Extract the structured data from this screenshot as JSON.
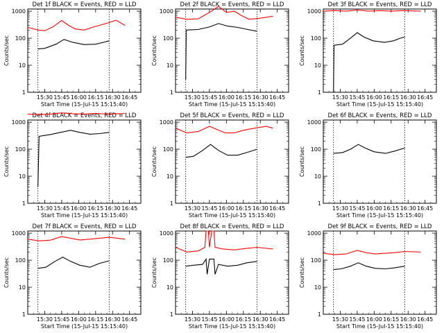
{
  "chart_data": [
    {
      "type": "line",
      "title": "Det 1f BLACK = Events, RED = LLD",
      "xlabel": "Start Time (15-Jul-15 15:15:40)",
      "ylabel": "Counts/sec",
      "x_tick_labels": [
        "15:30",
        "15:45",
        "16:00",
        "16:15",
        "16:30",
        "16:45"
      ],
      "y_tick_labels": [
        "1",
        "10",
        "100",
        "1000"
      ],
      "yscale": "log",
      "ylim": [
        1,
        1200
      ],
      "series": [
        {
          "color": "#000000",
          "points": [
            [
              9,
              40
            ],
            [
              15,
              42
            ],
            [
              25,
              60
            ],
            [
              32,
              90
            ],
            [
              40,
              70
            ],
            [
              50,
              58
            ],
            [
              60,
              60
            ],
            [
              68,
              72
            ],
            [
              72,
              80
            ]
          ]
        },
        {
          "color": "#ff0000",
          "points": [
            [
              0,
              250
            ],
            [
              9,
              200
            ],
            [
              15,
              190
            ],
            [
              22,
              260
            ],
            [
              30,
              450
            ],
            [
              36,
              300
            ],
            [
              42,
              220
            ],
            [
              50,
              200
            ],
            [
              58,
              260
            ],
            [
              66,
              320
            ],
            [
              72,
              380
            ],
            [
              78,
              460
            ],
            [
              86,
              300
            ]
          ]
        }
      ]
    },
    {
      "type": "line",
      "title": "Det 2f BLACK = Events, RED = LLD",
      "xlabel": "Start Time (15-Jul-15 15:15:40)",
      "ylabel": "Counts/sec",
      "x_tick_labels": [
        "15:30",
        "15:45",
        "16:00",
        "16:15",
        "16:30",
        "16:45"
      ],
      "y_tick_labels": [
        "1",
        "10",
        "100",
        "1000"
      ],
      "yscale": "log",
      "ylim": [
        1,
        1200
      ],
      "series": [
        {
          "color": "#000000",
          "points": [
            [
              9,
              3
            ],
            [
              9.5,
              200
            ],
            [
              20,
              210
            ],
            [
              30,
              260
            ],
            [
              38,
              350
            ],
            [
              46,
              280
            ],
            [
              55,
              250
            ],
            [
              64,
              210
            ],
            [
              72,
              180
            ]
          ]
        },
        {
          "color": "#ff0000",
          "points": [
            [
              0,
              600
            ],
            [
              10,
              500
            ],
            [
              20,
              520
            ],
            [
              30,
              900
            ],
            [
              38,
              1500
            ],
            [
              45,
              900
            ],
            [
              52,
              1000
            ],
            [
              58,
              700
            ],
            [
              65,
              500
            ],
            [
              75,
              550
            ],
            [
              86,
              650
            ]
          ]
        }
      ]
    },
    {
      "type": "line",
      "title": "Det 3f BLACK = Events, RED = LLD",
      "xlabel": "Start Time (15-Jul-15 15:15:40)",
      "ylabel": "Counts/sec",
      "x_tick_labels": [
        "15:30",
        "15:45",
        "16:00",
        "16:15",
        "16:30",
        "16:45"
      ],
      "y_tick_labels": [
        "1",
        "10",
        "100",
        "1000"
      ],
      "yscale": "log",
      "ylim": [
        1,
        1200
      ],
      "series": [
        {
          "color": "#000000",
          "points": [
            [
              9,
              1
            ],
            [
              9.5,
              55
            ],
            [
              17,
              60
            ],
            [
              24,
              100
            ],
            [
              30,
              160
            ],
            [
              36,
              110
            ],
            [
              44,
              80
            ],
            [
              54,
              70
            ],
            [
              62,
              80
            ],
            [
              68,
              100
            ],
            [
              72,
              110
            ]
          ]
        },
        {
          "color": "#ff0000",
          "points": [
            [
              0,
              1000
            ],
            [
              10,
              1050
            ],
            [
              20,
              1000
            ],
            [
              30,
              1100
            ],
            [
              40,
              1000
            ],
            [
              50,
              1050
            ],
            [
              60,
              1000
            ],
            [
              70,
              1050
            ],
            [
              86,
              1000
            ]
          ]
        }
      ]
    },
    {
      "type": "line",
      "title": "Det 4f BLACK = Events, RED = LLD",
      "xlabel": "Start Time (15-Jul-15 15:15:40)",
      "ylabel": "Counts/sec",
      "x_tick_labels": [
        "15:30",
        "15:45",
        "16:00",
        "16:15",
        "16:30",
        "16:45"
      ],
      "y_tick_labels": [
        "1",
        "10",
        "100",
        "1000"
      ],
      "yscale": "log",
      "ylim": [
        1,
        1200
      ],
      "series": [
        {
          "color": "#000000",
          "points": [
            [
              9,
              4
            ],
            [
              10,
              300
            ],
            [
              20,
              350
            ],
            [
              30,
              430
            ],
            [
              38,
              500
            ],
            [
              46,
              420
            ],
            [
              55,
              360
            ],
            [
              64,
              380
            ],
            [
              72,
              420
            ]
          ]
        },
        {
          "color": "#ff0000",
          "points": [
            [
              0,
              2000
            ],
            [
              10,
              1900
            ],
            [
              20,
              2000
            ],
            [
              30,
              2200
            ],
            [
              40,
              2050
            ],
            [
              50,
              2000
            ],
            [
              60,
              2100
            ],
            [
              70,
              2000
            ],
            [
              86,
              2100
            ]
          ]
        }
      ]
    },
    {
      "type": "line",
      "title": "Det 5f BLACK = Events, RED = LLD",
      "xlabel": "Start Time (15-Jul-15 15:15:40)",
      "ylabel": "Counts/sec",
      "x_tick_labels": [
        "15:30",
        "15:45",
        "16:00",
        "16:15",
        "16:30",
        "16:45"
      ],
      "y_tick_labels": [
        "1",
        "10",
        "100",
        "1000"
      ],
      "yscale": "log",
      "ylim": [
        1,
        1200
      ],
      "series": [
        {
          "color": "#000000",
          "points": [
            [
              9,
              50
            ],
            [
              16,
              55
            ],
            [
              24,
              90
            ],
            [
              31,
              150
            ],
            [
              38,
              90
            ],
            [
              46,
              60
            ],
            [
              55,
              60
            ],
            [
              63,
              75
            ],
            [
              72,
              100
            ]
          ]
        },
        {
          "color": "#ff0000",
          "points": [
            [
              0,
              600
            ],
            [
              10,
              400
            ],
            [
              20,
              450
            ],
            [
              30,
              700
            ],
            [
              36,
              550
            ],
            [
              44,
              400
            ],
            [
              52,
              400
            ],
            [
              60,
              500
            ],
            [
              70,
              600
            ],
            [
              80,
              700
            ],
            [
              86,
              600
            ]
          ]
        }
      ]
    },
    {
      "type": "line",
      "title": "Det 6f BLACK = Events, RED = LLD",
      "xlabel": "Start Time (15-Jul-15 15:15:40)",
      "ylabel": "Counts/sec",
      "x_tick_labels": [
        "15:30",
        "15:45",
        "16:00",
        "16:15",
        "16:30",
        "16:45"
      ],
      "y_tick_labels": [
        "1",
        "10",
        "100",
        "1000"
      ],
      "yscale": "log",
      "ylim": [
        1,
        1200
      ],
      "series": [
        {
          "color": "#000000",
          "points": [
            [
              9,
              70
            ],
            [
              17,
              75
            ],
            [
              24,
              100
            ],
            [
              31,
              150
            ],
            [
              37,
              110
            ],
            [
              45,
              80
            ],
            [
              55,
              70
            ],
            [
              63,
              85
            ],
            [
              72,
              110
            ]
          ]
        }
      ]
    },
    {
      "type": "line",
      "title": "Det 7f BLACK = Events, RED = LLD",
      "xlabel": "Start Time (15-Jul-15 15:15:40)",
      "ylabel": "Counts/sec",
      "x_tick_labels": [
        "15:30",
        "15:45",
        "16:00",
        "16:15",
        "16:30",
        "16:45"
      ],
      "y_tick_labels": [
        "1",
        "10",
        "100",
        "1000"
      ],
      "yscale": "log",
      "ylim": [
        1,
        1200
      ],
      "series": [
        {
          "color": "#000000",
          "points": [
            [
              9,
              50
            ],
            [
              16,
              55
            ],
            [
              24,
              90
            ],
            [
              31,
              130
            ],
            [
              38,
              90
            ],
            [
              46,
              65
            ],
            [
              55,
              55
            ],
            [
              63,
              75
            ],
            [
              72,
              95
            ]
          ]
        },
        {
          "color": "#ff0000",
          "points": [
            [
              0,
              600
            ],
            [
              10,
              520
            ],
            [
              20,
              550
            ],
            [
              30,
              750
            ],
            [
              38,
              650
            ],
            [
              46,
              560
            ],
            [
              55,
              600
            ],
            [
              63,
              650
            ],
            [
              72,
              700
            ],
            [
              86,
              600
            ]
          ]
        }
      ]
    },
    {
      "type": "line",
      "title": "Det 8f BLACK = Events, RED = LLD",
      "xlabel": "Start Time (15-Jul-15 15:15:40)",
      "ylabel": "Counts/sec",
      "x_tick_labels": [
        "15:30",
        "15:45",
        "16:00",
        "16:15",
        "16:30",
        "16:45"
      ],
      "y_tick_labels": [
        "1",
        "10",
        "100",
        "1000"
      ],
      "yscale": "log",
      "ylim": [
        1,
        1200
      ],
      "series": [
        {
          "color": "#000000",
          "points": [
            [
              9,
              60
            ],
            [
              16,
              65
            ],
            [
              24,
              70
            ],
            [
              27,
              110
            ],
            [
              28,
              30
            ],
            [
              30,
              110
            ],
            [
              34,
              110
            ],
            [
              35,
              30
            ],
            [
              38,
              70
            ],
            [
              46,
              60
            ],
            [
              55,
              65
            ],
            [
              63,
              80
            ],
            [
              72,
              90
            ]
          ]
        },
        {
          "color": "#ff0000",
          "points": [
            [
              0,
              300
            ],
            [
              10,
              200
            ],
            [
              20,
              220
            ],
            [
              26,
              300
            ],
            [
              27,
              1200
            ],
            [
              29,
              1200
            ],
            [
              30,
              300
            ],
            [
              32,
              1200
            ],
            [
              34,
              1200
            ],
            [
              35,
              300
            ],
            [
              42,
              260
            ],
            [
              52,
              240
            ],
            [
              62,
              270
            ],
            [
              72,
              300
            ],
            [
              86,
              260
            ]
          ]
        }
      ]
    },
    {
      "type": "line",
      "title": "Det 9f BLACK = Events, RED = LLD",
      "xlabel": "Start Time (15-Jul-15 15:15:40)",
      "ylabel": "Counts/sec",
      "x_tick_labels": [
        "15:30",
        "15:45",
        "16:00",
        "16:15",
        "16:30",
        "16:45"
      ],
      "y_tick_labels": [
        "1",
        "10",
        "100",
        "1000"
      ],
      "yscale": "log",
      "ylim": [
        1,
        1200
      ],
      "series": [
        {
          "color": "#000000",
          "points": [
            [
              9,
              45
            ],
            [
              16,
              48
            ],
            [
              24,
              60
            ],
            [
              31,
              80
            ],
            [
              38,
              60
            ],
            [
              46,
              50
            ],
            [
              55,
              48
            ],
            [
              63,
              52
            ],
            [
              72,
              60
            ]
          ]
        },
        {
          "color": "#ff0000",
          "points": [
            [
              0,
              180
            ],
            [
              10,
              160
            ],
            [
              20,
              170
            ],
            [
              30,
              230
            ],
            [
              38,
              190
            ],
            [
              46,
              170
            ],
            [
              55,
              180
            ],
            [
              63,
              190
            ],
            [
              72,
              210
            ],
            [
              86,
              200
            ]
          ]
        }
      ]
    }
  ]
}
